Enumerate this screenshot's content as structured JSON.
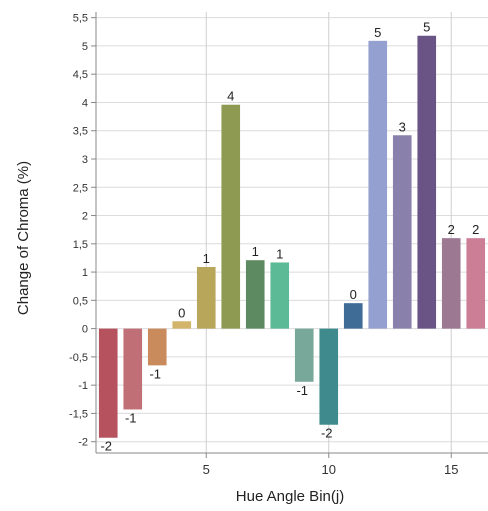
{
  "chart_data": {
    "type": "bar",
    "title": "",
    "xlabel": "Hue Angle Bin(j)",
    "ylabel": "Change of Chroma (%)",
    "x": [
      1,
      2,
      3,
      4,
      5,
      6,
      7,
      8,
      9,
      10,
      11,
      12,
      13,
      14,
      15,
      16
    ],
    "values": [
      -1.93,
      -1.43,
      -0.65,
      0.13,
      1.09,
      3.96,
      1.21,
      1.17,
      -0.94,
      -1.7,
      0.45,
      5.09,
      3.42,
      5.18,
      1.6,
      1.6
    ],
    "data_labels": [
      "-2",
      "-1",
      "-1",
      "0",
      "1",
      "4",
      "1",
      "1",
      "-1",
      "-2",
      "0",
      "5",
      "3",
      "5",
      "2",
      "2"
    ],
    "colors": [
      "#b5525e",
      "#c06f76",
      "#c98a5c",
      "#d2b56a",
      "#b8a65a",
      "#8e9a52",
      "#5e8a62",
      "#5cba96",
      "#78a89a",
      "#3e8a8c",
      "#3e6c96",
      "#93a0d0",
      "#8a80ac",
      "#6a5486",
      "#9c7892",
      "#cc7e96"
    ],
    "xlim": [
      0.5,
      16.5
    ],
    "ylim": [
      -2.2,
      5.6
    ],
    "x_ticks": [
      5,
      10,
      15
    ],
    "y_ticks": [
      {
        "v": 5.5,
        "t": "5,5"
      },
      {
        "v": 5,
        "t": "5"
      },
      {
        "v": 4.5,
        "t": "4,5"
      },
      {
        "v": 4,
        "t": "4"
      },
      {
        "v": 3.5,
        "t": "3,5"
      },
      {
        "v": 3,
        "t": "3"
      },
      {
        "v": 2.5,
        "t": "2,5"
      },
      {
        "v": 2,
        "t": "2"
      },
      {
        "v": 1.5,
        "t": "1,5"
      },
      {
        "v": 1,
        "t": "1"
      },
      {
        "v": 0.5,
        "t": "0,5"
      },
      {
        "v": 0,
        "t": "0"
      },
      {
        "v": -0.5,
        "t": "-0,5"
      },
      {
        "v": -1,
        "t": "-1"
      },
      {
        "v": -1.5,
        "t": "-1,5"
      },
      {
        "v": -2,
        "t": "-2"
      }
    ],
    "grid": true,
    "legend": "none"
  }
}
